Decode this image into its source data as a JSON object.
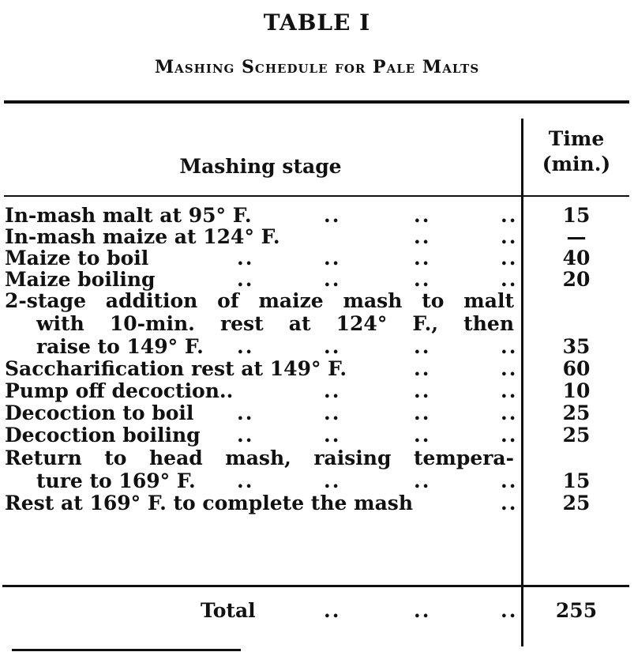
{
  "title": "TABLE I",
  "subtitle": "Mashing Schedule for Pale Malts",
  "columns": {
    "stage": "Mashing stage",
    "time_line1": "Time",
    "time_line2": "(min.)"
  },
  "rows": [
    {
      "stage": "In-mash malt at 95° F.",
      "time": "15"
    },
    {
      "stage": "In-mash maize at 124° F.",
      "time": "—"
    },
    {
      "stage": "Maize to boil",
      "time": "40"
    },
    {
      "stage": "Maize boiling",
      "time": "20"
    },
    {
      "stage_lines": [
        "2-stage addition of maize mash to malt",
        "with 10-min. rest at 124° F., then",
        "raise to 149° F."
      ],
      "time": "35"
    },
    {
      "stage": "Saccharification rest at 149° F.",
      "time": "60"
    },
    {
      "stage": "Pump off decoction..",
      "time": "10"
    },
    {
      "stage": "Decoction to boil",
      "time": "25"
    },
    {
      "stage": "Decoction boiling",
      "time": "25"
    },
    {
      "stage_lines": [
        "Return to head mash, raising tempera-",
        "ture to 169° F."
      ],
      "time": "15"
    },
    {
      "stage": "Rest at 169° F. to complete the mash",
      "time": "25"
    }
  ],
  "total": {
    "label": "Total",
    "time": "255"
  }
}
